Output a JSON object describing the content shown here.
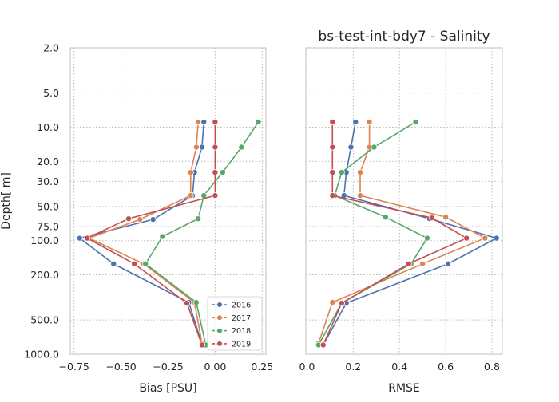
{
  "chart_data": [
    {
      "type": "line",
      "title": "",
      "xlabel": "Bias [PSU]",
      "ylabel": "Depth[ m]",
      "xlim": [
        -0.77,
        0.27
      ],
      "ylim": [
        1000,
        2
      ],
      "yscale": "log",
      "grid": true,
      "xticks": [
        -0.75,
        -0.5,
        -0.25,
        0.0,
        0.25
      ],
      "xtick_labels": [
        "−0.75",
        "−0.50",
        "−0.25",
        "0.00",
        "0.25"
      ],
      "yticks": [
        2,
        5,
        10,
        20,
        30,
        50,
        75,
        100,
        200,
        500,
        1000
      ],
      "ytick_labels": [
        "2.0",
        "5.0",
        "10.0",
        "20.0",
        "30.0",
        "50.0",
        "75.0",
        "100.0",
        "200.0",
        "500.0",
        "1000.0"
      ],
      "legend": "lower-right",
      "series": [
        {
          "name": "2016",
          "color": "#4c72b0",
          "points": [
            [
              -0.06,
              9
            ],
            [
              -0.07,
              15
            ],
            [
              -0.11,
              25
            ],
            [
              -0.12,
              40
            ],
            [
              -0.33,
              65
            ],
            [
              -0.72,
              95
            ],
            [
              -0.54,
              160
            ],
            [
              -0.14,
              350
            ],
            [
              -0.07,
              820
            ]
          ]
        },
        {
          "name": "2017",
          "color": "#dd8452",
          "points": [
            [
              -0.09,
              9
            ],
            [
              -0.1,
              15
            ],
            [
              -0.13,
              25
            ],
            [
              -0.13,
              40
            ],
            [
              -0.4,
              65
            ],
            [
              -0.67,
              95
            ],
            [
              -0.38,
              160
            ],
            [
              -0.11,
              350
            ],
            [
              -0.07,
              800
            ]
          ]
        },
        {
          "name": "2018",
          "color": "#55a868",
          "points": [
            [
              0.23,
              9
            ],
            [
              0.14,
              15
            ],
            [
              0.04,
              25
            ],
            [
              -0.06,
              40
            ],
            [
              -0.09,
              64
            ],
            [
              -0.28,
              92
            ],
            [
              -0.37,
              160
            ],
            [
              -0.1,
              350
            ],
            [
              -0.05,
              830
            ]
          ]
        },
        {
          "name": "2019",
          "color": "#c44e52",
          "points": [
            [
              0.0,
              9
            ],
            [
              0.0,
              15
            ],
            [
              0.0,
              25
            ],
            [
              0.0,
              40
            ],
            [
              -0.46,
              64
            ],
            [
              -0.68,
              95
            ],
            [
              -0.43,
              160
            ],
            [
              -0.15,
              355
            ],
            [
              -0.07,
              830
            ]
          ]
        }
      ]
    },
    {
      "type": "line",
      "title": "bs-test-int-bdy7 - Salinity",
      "xlabel": "RMSE",
      "ylabel": "",
      "xlim": [
        -0.005,
        0.845
      ],
      "ylim": [
        1000,
        2
      ],
      "yscale": "log",
      "grid": true,
      "xticks": [
        0.0,
        0.2,
        0.4,
        0.6,
        0.8
      ],
      "xtick_labels": [
        "0.0",
        "0.2",
        "0.4",
        "0.6",
        "0.8"
      ],
      "series": [
        {
          "name": "2016",
          "color": "#4c72b0",
          "points": [
            [
              0.21,
              9
            ],
            [
              0.19,
              15
            ],
            [
              0.17,
              25
            ],
            [
              0.16,
              40
            ],
            [
              0.53,
              64
            ],
            [
              0.82,
              95
            ],
            [
              0.61,
              160
            ],
            [
              0.17,
              355
            ],
            [
              0.07,
              830
            ]
          ]
        },
        {
          "name": "2017",
          "color": "#dd8452",
          "points": [
            [
              0.27,
              9
            ],
            [
              0.27,
              15
            ],
            [
              0.23,
              25
            ],
            [
              0.23,
              40
            ],
            [
              0.6,
              62
            ],
            [
              0.77,
              95
            ],
            [
              0.5,
              160
            ],
            [
              0.11,
              350
            ],
            [
              0.05,
              800
            ]
          ]
        },
        {
          "name": "2018",
          "color": "#55a868",
          "points": [
            [
              0.47,
              9
            ],
            [
              0.29,
              15
            ],
            [
              0.15,
              25
            ],
            [
              0.12,
              40
            ],
            [
              0.34,
              62
            ],
            [
              0.52,
              95
            ],
            [
              0.45,
              160
            ],
            [
              0.15,
              355
            ],
            [
              0.05,
              830
            ]
          ]
        },
        {
          "name": "2019",
          "color": "#c44e52",
          "points": [
            [
              0.11,
              9
            ],
            [
              0.11,
              15
            ],
            [
              0.11,
              25
            ],
            [
              0.11,
              40
            ],
            [
              0.54,
              63
            ],
            [
              0.69,
              95
            ],
            [
              0.44,
              160
            ],
            [
              0.15,
              355
            ],
            [
              0.07,
              830
            ]
          ]
        }
      ]
    }
  ]
}
